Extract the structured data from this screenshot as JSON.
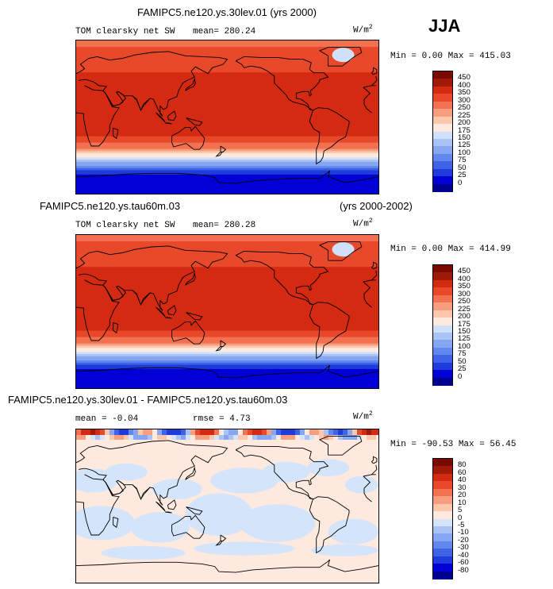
{
  "season": "JJA",
  "units_base": "W/m",
  "units_exp": "2",
  "panels": [
    {
      "title": "FAMIPC5.ne120.ys.30lev.01 (yrs 2000)",
      "title_right": "",
      "field_label": "TOM clearsky net SW",
      "stat1": "mean= 280.24",
      "stat2": "",
      "minmax": "Min =   0.00 Max = 415.03"
    },
    {
      "title": "FAMIPC5.ne120.ys.tau60m.03",
      "title_right": "(yrs 2000-2002)",
      "field_label": "TOM clearsky net SW",
      "stat1": "mean= 280.28",
      "stat2": "",
      "minmax": "Min =   0.00 Max = 414.99"
    },
    {
      "title": "FAMIPC5.ne120.ys.30lev.01 - FAMIPC5.ne120.ys.tau60m.03",
      "title_right": "",
      "field_label": "",
      "stat1": "mean =  -0.04",
      "stat2": "rmse =   4.73",
      "minmax": "Min = -90.53 Max =  56.45"
    }
  ],
  "chart_data": [
    {
      "type": "heatmap",
      "title": "FAMIPC5.ne120.ys.30lev.01 (yrs 2000)",
      "variable": "TOM clearsky net SW",
      "units": "W/m^2",
      "season": "JJA",
      "mean": 280.24,
      "min": 0.0,
      "max": 415.03,
      "colorbar_levels": [
        "0",
        "25",
        "50",
        "75",
        "100",
        "125",
        "150",
        "175",
        "200",
        "225",
        "250",
        "300",
        "350",
        "400",
        "450"
      ],
      "colorbar_colors": [
        "#00008f",
        "#0000d6",
        "#1f3bdb",
        "#3f63e6",
        "#6088ee",
        "#86a6f2",
        "#a9c3f6",
        "#cfe0fa",
        "#fde9de",
        "#fbc7ad",
        "#f79e7f",
        "#f27150",
        "#e8492a",
        "#d42a12",
        "#a01a08",
        "#7a0a00"
      ]
    },
    {
      "type": "heatmap",
      "title": "FAMIPC5.ne120.ys.tau60m.03 (yrs 2000-2002)",
      "variable": "TOM clearsky net SW",
      "units": "W/m^2",
      "season": "JJA",
      "mean": 280.28,
      "min": 0.0,
      "max": 414.99,
      "colorbar_levels": [
        "0",
        "25",
        "50",
        "75",
        "100",
        "125",
        "150",
        "175",
        "200",
        "225",
        "250",
        "300",
        "350",
        "400",
        "450"
      ],
      "colorbar_colors": [
        "#00008f",
        "#0000d6",
        "#1f3bdb",
        "#3f63e6",
        "#6088ee",
        "#86a6f2",
        "#a9c3f6",
        "#cfe0fa",
        "#fde9de",
        "#fbc7ad",
        "#f79e7f",
        "#f27150",
        "#e8492a",
        "#d42a12",
        "#a01a08",
        "#7a0a00"
      ]
    },
    {
      "type": "heatmap",
      "title": "FAMIPC5.ne120.ys.30lev.01 - FAMIPC5.ne120.ys.tau60m.03",
      "units": "W/m^2",
      "mean": -0.04,
      "rmse": 4.73,
      "min": -90.53,
      "max": 56.45,
      "colorbar_levels": [
        "-80",
        "-60",
        "-40",
        "-30",
        "-20",
        "-10",
        "-5",
        "0",
        "5",
        "10",
        "20",
        "30",
        "40",
        "60",
        "80"
      ],
      "colorbar_colors": [
        "#00008f",
        "#0000d6",
        "#1f3bdb",
        "#3f63e6",
        "#6088ee",
        "#86a6f2",
        "#a9c3f6",
        "#d4e4fb",
        "#fde9de",
        "#fbc7ad",
        "#f79e7f",
        "#f27150",
        "#e8492a",
        "#d42a12",
        "#a01a08",
        "#7a0a00"
      ]
    }
  ]
}
